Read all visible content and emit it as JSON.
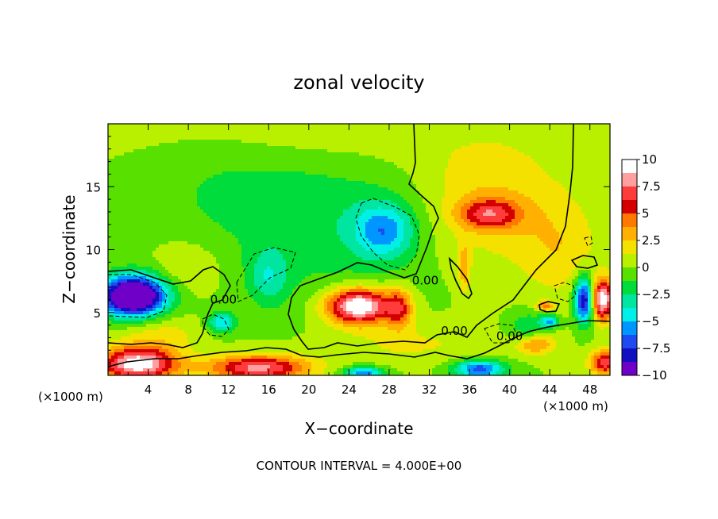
{
  "chart_data": {
    "type": "heatmap",
    "title": "zonal velocity",
    "xlabel": "X−coordinate",
    "ylabel": "Z−coordinate",
    "x_unit_left": "(×1000 m)",
    "x_unit_right": "(×1000 m)",
    "footer": "CONTOUR INTERVAL = 4.000E+00",
    "xlim": [
      0,
      50
    ],
    "ylim": [
      0,
      20
    ],
    "x_ticks": [
      4,
      8,
      12,
      16,
      20,
      24,
      28,
      32,
      36,
      40,
      44,
      48
    ],
    "x_tick_labels": [
      "4",
      "8",
      "12",
      "16",
      "20",
      "24",
      "28",
      "32",
      "36",
      "40",
      "44",
      "48"
    ],
    "y_ticks": [
      5,
      10,
      15
    ],
    "y_tick_labels": [
      "5",
      "10",
      "15"
    ],
    "contour_labels": [
      {
        "text": "0.00",
        "x": 11.5,
        "y": 6.1
      },
      {
        "text": "0.00",
        "x": 31.6,
        "y": 7.6
      },
      {
        "text": "0.00",
        "x": 34.5,
        "y": 3.6
      },
      {
        "text": "0.00",
        "x": 40.0,
        "y": 3.2
      }
    ],
    "colorbar": {
      "range": [
        -10,
        10
      ],
      "tick_labels": [
        "10",
        "7.5",
        "5",
        "2.5",
        "0",
        "−2.5",
        "−5",
        "−7.5",
        "−10"
      ],
      "colors": [
        "#ffffff",
        "#ff9f9f",
        "#ff3c3c",
        "#d40000",
        "#ff7800",
        "#ffb000",
        "#f5e100",
        "#b8f000",
        "#58e000",
        "#00dc3c",
        "#00e6a0",
        "#00f0e6",
        "#0096ff",
        "#1e4bf0",
        "#1010c0",
        "#6e00c8"
      ]
    },
    "features": [
      {
        "x": 25,
        "y": 5.5,
        "rx": 3.2,
        "ry": 1.4,
        "value": 11
      },
      {
        "x": 29,
        "y": 5.3,
        "rx": 1.3,
        "ry": 1.6,
        "value": 5
      },
      {
        "x": 38,
        "y": 12.8,
        "rx": 3.0,
        "ry": 1.2,
        "value": 5.5
      },
      {
        "x": 42.5,
        "y": 2.5,
        "rx": 2.0,
        "ry": 0.9,
        "value": 5
      },
      {
        "x": 43.5,
        "y": 5.5,
        "rx": 0.9,
        "ry": 0.4,
        "value": 4
      },
      {
        "x": 35.5,
        "y": 8.5,
        "rx": 0.6,
        "ry": 2.0,
        "value": 3
      },
      {
        "x": 3,
        "y": 0.9,
        "rx": 3.8,
        "ry": 1.3,
        "value": 10
      },
      {
        "x": 15,
        "y": 0.6,
        "rx": 5.0,
        "ry": 1.0,
        "value": 8
      },
      {
        "x": 49.5,
        "y": 1.0,
        "rx": 1.5,
        "ry": 1.0,
        "value": 7
      },
      {
        "x": 49.2,
        "y": 6.0,
        "rx": 1.2,
        "ry": 1.6,
        "value": 10
      },
      {
        "x": 2.5,
        "y": 6.3,
        "rx": 3.2,
        "ry": 1.6,
        "value": -14
      },
      {
        "x": 47.5,
        "y": 6.0,
        "rx": 1.0,
        "ry": 1.8,
        "value": -10
      },
      {
        "x": 27.5,
        "y": 11.5,
        "rx": 3.0,
        "ry": 2.2,
        "value": -5
      },
      {
        "x": 11.3,
        "y": 4.2,
        "rx": 1.3,
        "ry": 0.8,
        "value": -5
      },
      {
        "x": 44.0,
        "y": 4.3,
        "rx": 0.9,
        "ry": 0.5,
        "value": -5
      },
      {
        "x": 42.0,
        "y": 3.5,
        "rx": 2.0,
        "ry": 1.5,
        "value": -3
      },
      {
        "x": 37,
        "y": 0.5,
        "rx": 2.5,
        "ry": 0.7,
        "value": -7
      },
      {
        "x": 25.5,
        "y": 0.2,
        "rx": 2.0,
        "ry": 0.5,
        "value": -6
      },
      {
        "x": 16,
        "y": 7.8,
        "rx": 2.0,
        "ry": 2.2,
        "value": -3
      },
      {
        "x": 22,
        "y": 12,
        "rx": 10,
        "ry": 6,
        "value": -2
      },
      {
        "x": 12,
        "y": 15,
        "rx": 8,
        "ry": 4,
        "value": -1.2
      },
      {
        "x": 38,
        "y": 14,
        "rx": 7,
        "ry": 5,
        "value": 2.5
      },
      {
        "x": 45,
        "y": 10,
        "rx": 4,
        "ry": 4,
        "value": 2
      },
      {
        "x": 8,
        "y": 8.5,
        "rx": 3,
        "ry": 2,
        "value": 1.5
      },
      {
        "x": 30,
        "y": 2.5,
        "rx": 8,
        "ry": 1.6,
        "value": 1.5
      },
      {
        "x": 5,
        "y": 3.2,
        "rx": 4,
        "ry": 1.5,
        "value": 2
      },
      {
        "x": 20,
        "y": 18.5,
        "rx": 14,
        "ry": 2.5,
        "value": 1
      }
    ]
  }
}
